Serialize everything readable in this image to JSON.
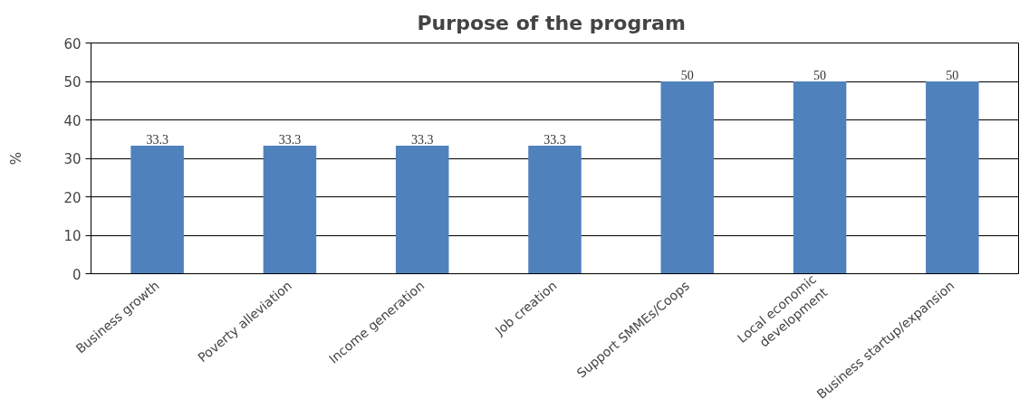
{
  "chart_data": {
    "type": "bar",
    "title": "Purpose of the  program",
    "ylabel": "%",
    "categories": [
      "Business growth",
      "Poverty alleviation",
      "Income generation",
      "Job creation",
      "Support SMMEs/Coops",
      "Local economic\ndevelopment",
      "Business startup/expansion"
    ],
    "values": [
      33.3,
      33.3,
      33.3,
      33.3,
      50,
      50,
      50
    ],
    "color": "#4f81bd",
    "ylim": [
      0,
      60
    ],
    "yticks": [
      0,
      10,
      20,
      30,
      40,
      50,
      60
    ],
    "grid": "y",
    "data_labels": true
  }
}
